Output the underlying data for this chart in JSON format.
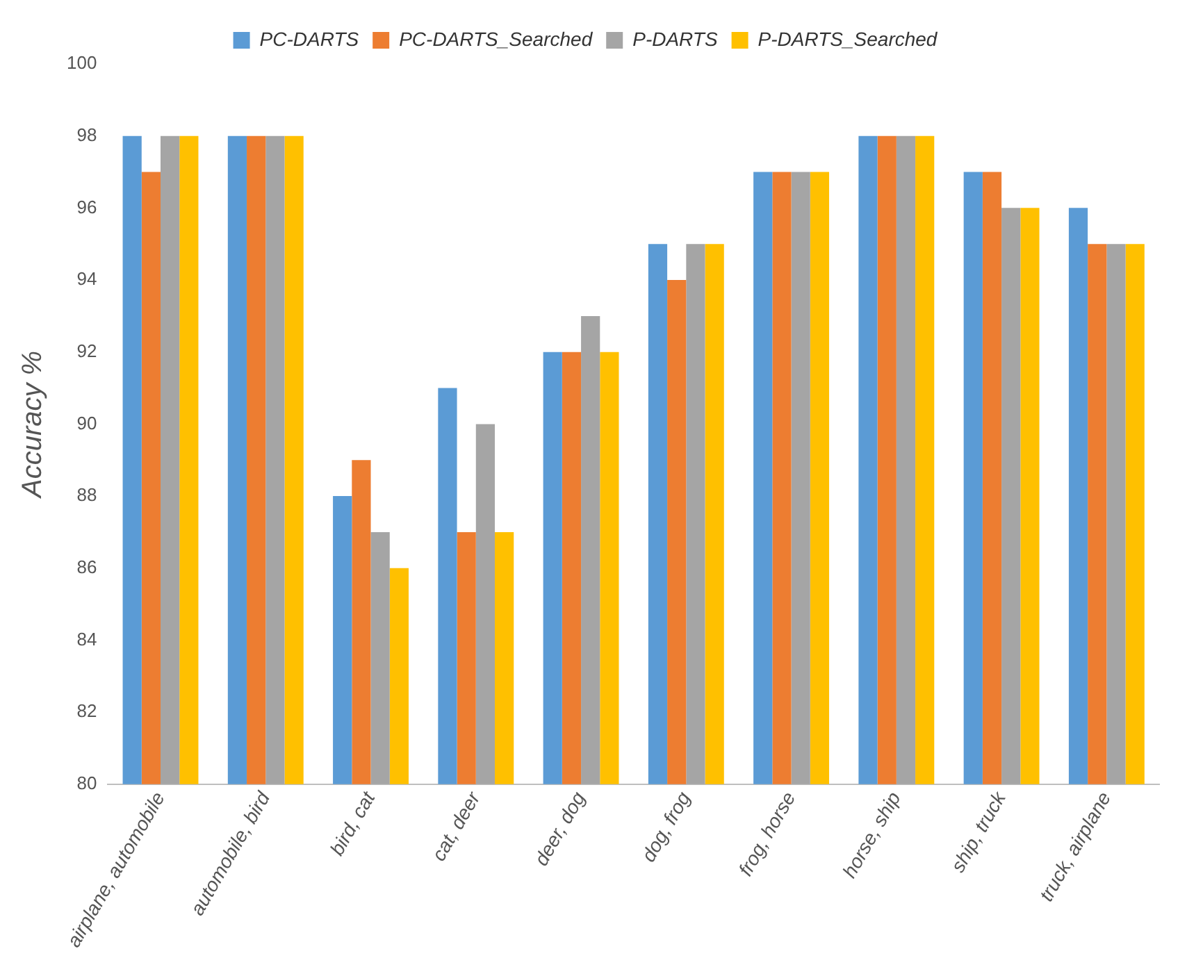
{
  "chart_data": {
    "type": "bar",
    "ylabel": "Accuracy %",
    "categories": [
      "airplane, automobile",
      "automobile, bird",
      "bird, cat",
      "cat, deer",
      "deer, dog",
      "dog, frog",
      "frog, horse",
      "horse, ship",
      "ship, truck",
      "truck, airplane"
    ],
    "series": [
      {
        "name": "PC-DARTS",
        "color": "#5b9bd5",
        "values": [
          98,
          98,
          88,
          91,
          92,
          95,
          97,
          98,
          97,
          96
        ]
      },
      {
        "name": "PC-DARTS_Searched",
        "color": "#ed7d31",
        "values": [
          97,
          98,
          89,
          87,
          92,
          94,
          97,
          98,
          97,
          95
        ]
      },
      {
        "name": "P-DARTS",
        "color": "#a5a5a5",
        "values": [
          98,
          98,
          87,
          90,
          93,
          95,
          97,
          98,
          96,
          95
        ]
      },
      {
        "name": "P-DARTS_Searched",
        "color": "#ffc000",
        "values": [
          98,
          98,
          86,
          87,
          92,
          95,
          97,
          98,
          96,
          95
        ]
      }
    ],
    "ylim": [
      80,
      100
    ],
    "yticks": [
      80,
      82,
      84,
      86,
      88,
      90,
      92,
      94,
      96,
      98,
      100
    ],
    "grid": false,
    "legend": "top"
  }
}
